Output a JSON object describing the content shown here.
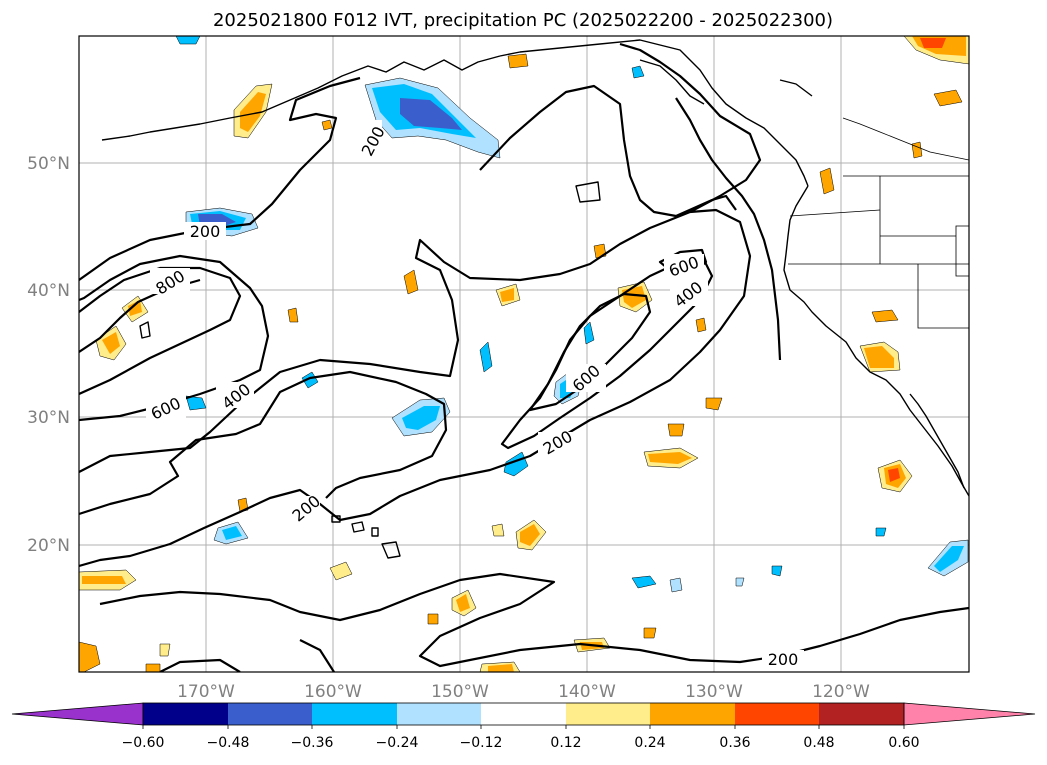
{
  "title": "2025021800 F012 IVT, precipitation PC (2025022200 - 2025022300)",
  "lon_labels": [
    "170°W",
    "160°W",
    "150°W",
    "140°W",
    "130°W",
    "120°W"
  ],
  "lat_labels": [
    "50°N",
    "40°N",
    "30°N",
    "20°N"
  ],
  "colorbar": {
    "ticks": [
      "−0.60",
      "−0.48",
      "−0.36",
      "−0.24",
      "−0.12",
      "0.12",
      "0.24",
      "0.36",
      "0.48",
      "0.60"
    ],
    "colors": [
      "#9932cc",
      "#00008b",
      "#3a5fcd",
      "#00bfff",
      "#b0e2ff",
      "#ffffff",
      "#ffec8b",
      "#ffa500",
      "#ff4500",
      "#b22222",
      "#ff82ab"
    ]
  },
  "contour_labels": [
    "200",
    "200",
    "200",
    "200",
    "200",
    "400",
    "400",
    "600",
    "600",
    "600",
    "800"
  ]
}
